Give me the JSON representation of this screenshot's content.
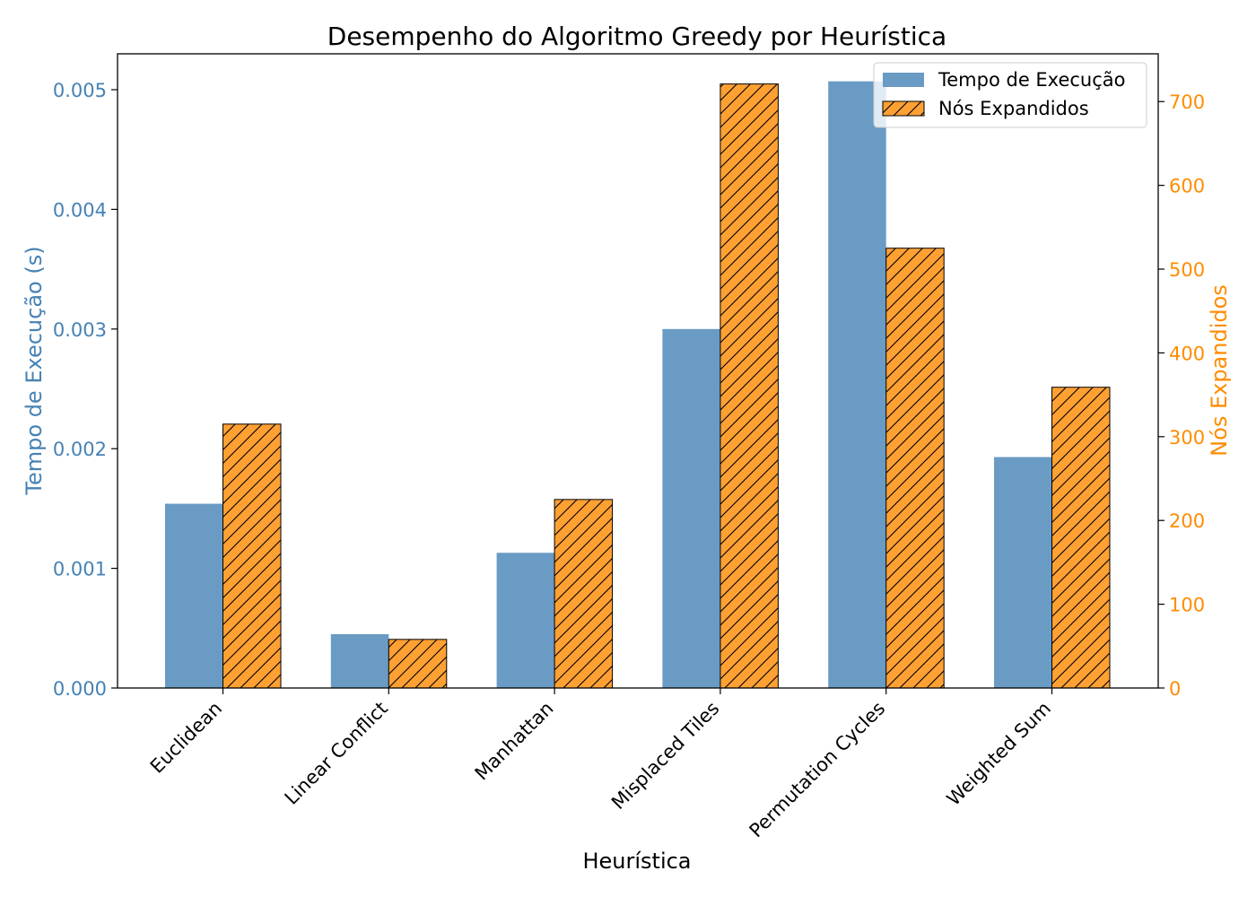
{
  "chart_data": {
    "type": "bar",
    "title": "Desempenho do Algoritmo Greedy por Heurística",
    "xlabel": "Heurística",
    "ylabel_left": "Tempo de Execução (s)",
    "ylabel_right": "Nós Expandidos",
    "categories": [
      "Euclidean",
      "Linear Conflict",
      "Manhattan",
      "Misplaced Tiles",
      "Permutation Cycles",
      "Weighted Sum"
    ],
    "series": [
      {
        "name": "Tempo de Execução",
        "axis": "left",
        "values": [
          0.00154,
          0.00045,
          0.00113,
          0.003,
          0.00507,
          0.00193
        ],
        "color": "#6a9bc4"
      },
      {
        "name": "Nós Expandidos",
        "axis": "right",
        "values": [
          315,
          58,
          225,
          721,
          525,
          359
        ],
        "color": "#ffa033",
        "hatch": true
      }
    ],
    "ylim_left": [
      0,
      0.0053
    ],
    "ylim_right": [
      0,
      757
    ],
    "yticks_left": [
      "0.000",
      "0.001",
      "0.002",
      "0.003",
      "0.004",
      "0.005"
    ],
    "yticks_right": [
      "0",
      "100",
      "200",
      "300",
      "400",
      "500",
      "600",
      "700"
    ],
    "left_axis_color": "#4682b4",
    "right_axis_color": "#ff8c00",
    "legend_position": "upper-right",
    "grid": false
  }
}
